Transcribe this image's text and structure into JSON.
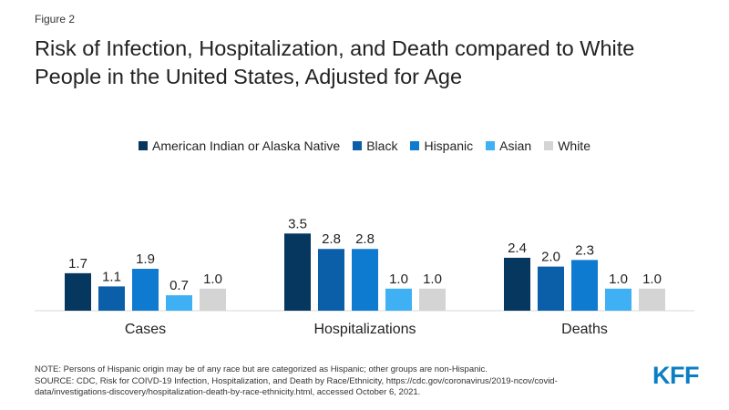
{
  "figure_label": "Figure 2",
  "title_line1": "Risk of Infection, Hospitalization, and Death compared to White",
  "title_line2": "People in the United States, Adjusted for Age",
  "note": "NOTE: Persons of Hispanic origin may be of any race but are categorized as Hispanic; other groups are non-Hispanic.",
  "source_line1": "SOURCE: CDC, Risk for COIVD-19 Infection, Hospitalization, and Death by Race/Ethnicity, https://cdc.gov/coronavirus/2019-ncov/covid-",
  "source_line2": "data/investigations-discovery/hospitalization-death-by-race-ethnicity.html, accessed October 6, 2021.",
  "logo_text": "KFF",
  "chart_data": {
    "type": "bar",
    "categories": [
      "Cases",
      "Hospitalizations",
      "Deaths"
    ],
    "series": [
      {
        "name": "American Indian or Alaska Native",
        "color": "#06375e",
        "values": [
          1.7,
          3.5,
          2.4
        ]
      },
      {
        "name": "Black",
        "color": "#0b5ea8",
        "values": [
          1.1,
          2.8,
          2.0
        ]
      },
      {
        "name": "Hispanic",
        "color": "#0f7bd0",
        "values": [
          1.9,
          2.8,
          2.3
        ]
      },
      {
        "name": "Asian",
        "color": "#3fb0f3",
        "values": [
          0.7,
          1.0,
          1.0
        ]
      },
      {
        "name": "White",
        "color": "#d4d4d4",
        "values": [
          1.0,
          1.0,
          1.0
        ]
      }
    ],
    "value_labels": [
      [
        "1.7",
        "3.5",
        "2.4"
      ],
      [
        "1.1",
        "2.8",
        "2.0"
      ],
      [
        "1.9",
        "2.8",
        "2.3"
      ],
      [
        "0.7",
        "1.0",
        "1.0"
      ],
      [
        "1.0",
        "1.0",
        "1.0"
      ]
    ],
    "legend_position": "top-center",
    "grid": false,
    "ylim": [
      0,
      3.5
    ]
  }
}
